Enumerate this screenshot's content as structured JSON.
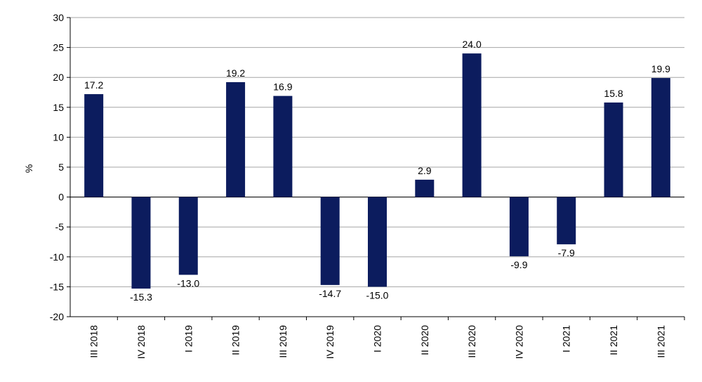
{
  "chart_data": {
    "type": "bar",
    "categories": [
      "III 2018",
      "IV 2018",
      "I 2019",
      "II 2019",
      "III 2019",
      "IV 2019",
      "I 2020",
      "II 2020",
      "III 2020",
      "IV 2020",
      "I 2021",
      "II 2021",
      "III 2021"
    ],
    "values": [
      17.2,
      -15.3,
      -13.0,
      19.2,
      16.9,
      -14.7,
      -15.0,
      2.9,
      24.0,
      -9.9,
      -7.9,
      15.8,
      19.9
    ],
    "data_labels": [
      "17.2",
      "-15.3",
      "-13.0",
      "19.2",
      "16.9",
      "-14.7",
      "-15.0",
      "2.9",
      "24.0",
      "-9.9",
      "-7.9",
      "15.8",
      "19.9"
    ],
    "ylabel": "%",
    "ylim": [
      -20,
      30
    ],
    "yticks": [
      -20,
      -15,
      -10,
      -5,
      0,
      5,
      10,
      15,
      20,
      25,
      30
    ],
    "ytick_labels": [
      "-20",
      "-15",
      "-10",
      "-5",
      "0",
      "5",
      "10",
      "15",
      "20",
      "25",
      "30"
    ],
    "grid": true,
    "legend": "none",
    "bar_color": "#0c1c5e",
    "grid_color": "#a6a6a6"
  }
}
